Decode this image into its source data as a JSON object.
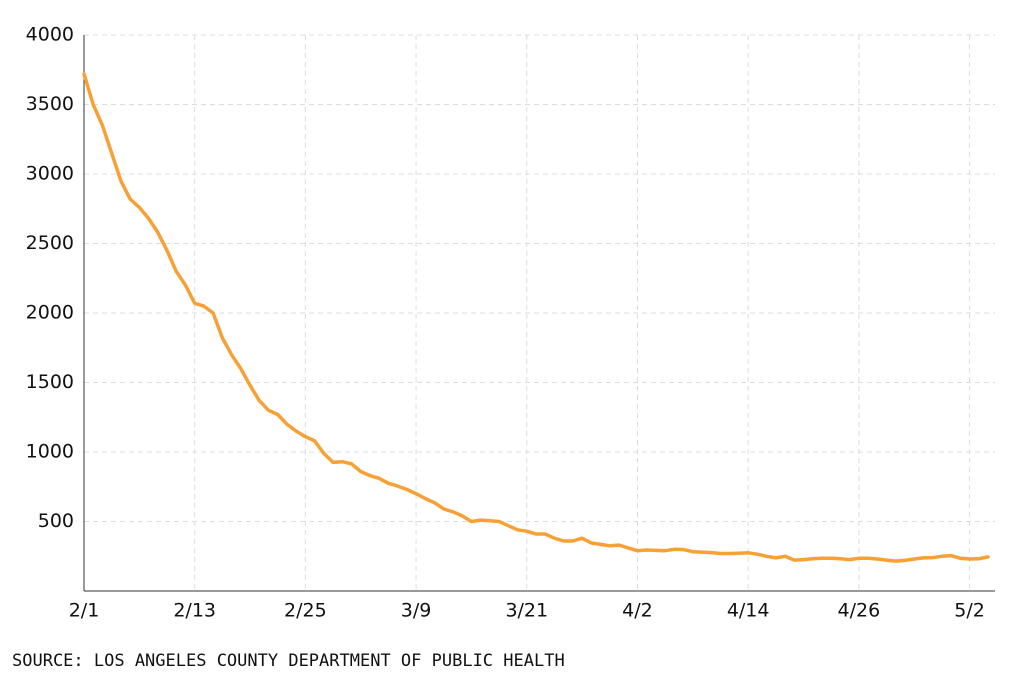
{
  "chart_data": {
    "type": "line",
    "categories": [
      "2/1",
      null,
      null,
      null,
      null,
      null,
      null,
      null,
      null,
      null,
      null,
      null,
      "2/13",
      null,
      null,
      null,
      null,
      null,
      null,
      null,
      null,
      null,
      null,
      null,
      "2/25",
      null,
      null,
      null,
      null,
      null,
      null,
      null,
      null,
      null,
      null,
      null,
      "3/9",
      null,
      null,
      null,
      null,
      null,
      null,
      null,
      null,
      null,
      null,
      null,
      "3/21",
      null,
      null,
      null,
      null,
      null,
      null,
      null,
      null,
      null,
      null,
      null,
      "4/2",
      null,
      null,
      null,
      null,
      null,
      null,
      null,
      null,
      null,
      null,
      null,
      "4/14",
      null,
      null,
      null,
      null,
      null,
      null,
      null,
      null,
      null,
      null,
      null,
      "4/26",
      null,
      null,
      null,
      null,
      null,
      null,
      null,
      null,
      null,
      null,
      null,
      "5/2",
      null,
      null
    ],
    "series": [
      {
        "color": "#f7a035",
        "values": [
          3720,
          3500,
          3350,
          3150,
          2950,
          2820,
          2760,
          2680,
          2580,
          2450,
          2300,
          2200,
          2070,
          2050,
          2000,
          1820,
          1700,
          1600,
          1480,
          1370,
          1300,
          1270,
          1200,
          1150,
          1110,
          1080,
          990,
          925,
          930,
          915,
          860,
          830,
          810,
          775,
          755,
          730,
          700,
          665,
          635,
          590,
          570,
          540,
          500,
          510,
          505,
          500,
          470,
          440,
          430,
          410,
          410,
          380,
          360,
          360,
          380,
          345,
          335,
          325,
          330,
          310,
          290,
          295,
          292,
          290,
          300,
          298,
          283,
          280,
          276,
          270,
          270,
          272,
          275,
          265,
          250,
          238,
          250,
          222,
          226,
          232,
          236,
          236,
          232,
          226,
          235,
          236,
          230,
          222,
          215,
          220,
          230,
          238,
          240,
          250,
          255,
          235,
          230,
          232,
          245
        ]
      }
    ],
    "ylim": [
      0,
      4000
    ],
    "yticks": [
      500,
      1000,
      1500,
      2000,
      2500,
      3000,
      3500,
      4000
    ],
    "grid": true,
    "source": "SOURCE: LOS ANGELES COUNTY DEPARTMENT OF PUBLIC HEALTH"
  }
}
